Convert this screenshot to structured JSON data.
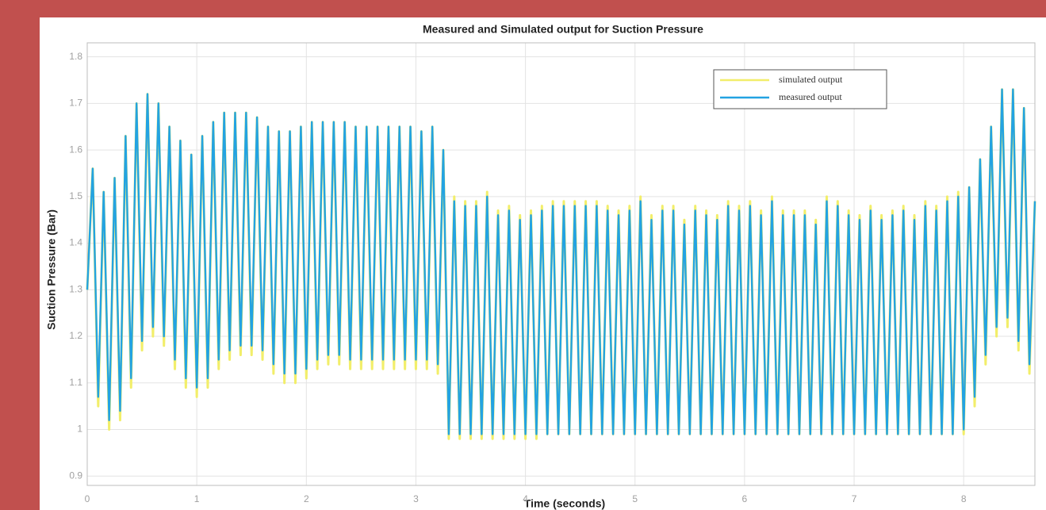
{
  "chart_data": {
    "type": "line",
    "title": "Measured and Simulated output for Suction Pressure",
    "xlabel": "Time (seconds)",
    "ylabel": "Suction Pressure (Bar)",
    "x": [
      0,
      0.05,
      0.1,
      0.15,
      0.2,
      0.25,
      0.3,
      0.35,
      0.4,
      0.45,
      0.5,
      0.55,
      0.6,
      0.65,
      0.7,
      0.75,
      0.8,
      0.85,
      0.9,
      0.95,
      1,
      1.05,
      1.1,
      1.15,
      1.2,
      1.25,
      1.3,
      1.35,
      1.4,
      1.45,
      1.5,
      1.55,
      1.6,
      1.65,
      1.7,
      1.75,
      1.8,
      1.85,
      1.9,
      1.95,
      2,
      2.05,
      2.1,
      2.15,
      2.2,
      2.25,
      2.3,
      2.35,
      2.4,
      2.45,
      2.5,
      2.55,
      2.6,
      2.65,
      2.7,
      2.75,
      2.8,
      2.85,
      2.9,
      2.95,
      3,
      3.05,
      3.1,
      3.15,
      3.2,
      3.25,
      3.3,
      3.35,
      3.4,
      3.45,
      3.5,
      3.55,
      3.6,
      3.65,
      3.7,
      3.75,
      3.8,
      3.85,
      3.9,
      3.95,
      4,
      4.05,
      4.1,
      4.15,
      4.2,
      4.25,
      4.3,
      4.35,
      4.4,
      4.45,
      4.5,
      4.55,
      4.6,
      4.65,
      4.7,
      4.75,
      4.8,
      4.85,
      4.9,
      4.95,
      5,
      5.05,
      5.1,
      5.15,
      5.2,
      5.25,
      5.3,
      5.35,
      5.4,
      5.45,
      5.5,
      5.55,
      5.6,
      5.65,
      5.7,
      5.75,
      5.8,
      5.85,
      5.9,
      5.95,
      6,
      6.05,
      6.1,
      6.15,
      6.2,
      6.25,
      6.3,
      6.35,
      6.4,
      6.45,
      6.5,
      6.55,
      6.6,
      6.65,
      6.7,
      6.75,
      6.8,
      6.85,
      6.9,
      6.95,
      7,
      7.05,
      7.1,
      7.15,
      7.2,
      7.25,
      7.3,
      7.35,
      7.4,
      7.45,
      7.5,
      7.55,
      7.6,
      7.65,
      7.7,
      7.75,
      7.8,
      7.85,
      7.9,
      7.95,
      8,
      8.05,
      8.1,
      8.15,
      8.2,
      8.25,
      8.3,
      8.35,
      8.4,
      8.45,
      8.5,
      8.55,
      8.6,
      8.65
    ],
    "series": [
      {
        "name": "simulated output",
        "color": "#f2ee6a",
        "values": [
          1.3,
          1.56,
          1.05,
          1.51,
          1.0,
          1.54,
          1.02,
          1.63,
          1.09,
          1.7,
          1.17,
          1.72,
          1.2,
          1.7,
          1.18,
          1.65,
          1.13,
          1.62,
          1.09,
          1.59,
          1.07,
          1.63,
          1.09,
          1.66,
          1.13,
          1.68,
          1.15,
          1.68,
          1.16,
          1.68,
          1.16,
          1.67,
          1.15,
          1.65,
          1.12,
          1.64,
          1.1,
          1.64,
          1.1,
          1.65,
          1.11,
          1.66,
          1.13,
          1.66,
          1.14,
          1.66,
          1.14,
          1.66,
          1.13,
          1.65,
          1.13,
          1.65,
          1.13,
          1.65,
          1.13,
          1.65,
          1.13,
          1.65,
          1.13,
          1.65,
          1.13,
          1.64,
          1.13,
          1.65,
          1.12,
          1.6,
          0.98,
          1.5,
          0.98,
          1.49,
          0.98,
          1.49,
          0.98,
          1.51,
          0.98,
          1.47,
          0.98,
          1.48,
          0.98,
          1.46,
          0.98,
          1.47,
          0.98,
          1.48,
          0.99,
          1.49,
          0.99,
          1.49,
          0.99,
          1.49,
          0.99,
          1.49,
          0.99,
          1.49,
          0.99,
          1.48,
          0.99,
          1.47,
          0.99,
          1.48,
          0.99,
          1.5,
          0.99,
          1.46,
          0.99,
          1.48,
          0.99,
          1.48,
          0.99,
          1.45,
          0.99,
          1.48,
          0.99,
          1.47,
          0.99,
          1.46,
          0.99,
          1.49,
          0.99,
          1.48,
          0.99,
          1.49,
          0.99,
          1.47,
          0.99,
          1.5,
          0.99,
          1.47,
          0.99,
          1.47,
          0.99,
          1.47,
          0.99,
          1.45,
          0.99,
          1.5,
          0.99,
          1.49,
          0.99,
          1.47,
          0.99,
          1.46,
          0.99,
          1.48,
          0.99,
          1.46,
          0.99,
          1.47,
          0.99,
          1.48,
          0.99,
          1.46,
          0.99,
          1.49,
          0.99,
          1.48,
          0.99,
          1.5,
          0.99,
          1.51,
          0.99,
          1.52,
          1.05,
          1.58,
          1.14,
          1.65,
          1.2,
          1.73,
          1.22,
          1.73,
          1.17,
          1.69,
          1.12,
          1.49
        ]
      },
      {
        "name": "measured output",
        "color": "#23a3e2",
        "values": [
          1.3,
          1.56,
          1.07,
          1.51,
          1.02,
          1.54,
          1.04,
          1.63,
          1.11,
          1.7,
          1.19,
          1.72,
          1.22,
          1.7,
          1.2,
          1.65,
          1.15,
          1.62,
          1.11,
          1.59,
          1.09,
          1.63,
          1.11,
          1.66,
          1.15,
          1.68,
          1.17,
          1.68,
          1.18,
          1.68,
          1.18,
          1.67,
          1.17,
          1.65,
          1.14,
          1.64,
          1.12,
          1.64,
          1.12,
          1.65,
          1.13,
          1.66,
          1.15,
          1.66,
          1.16,
          1.66,
          1.16,
          1.66,
          1.15,
          1.65,
          1.15,
          1.65,
          1.15,
          1.65,
          1.15,
          1.65,
          1.15,
          1.65,
          1.15,
          1.65,
          1.15,
          1.64,
          1.15,
          1.65,
          1.14,
          1.6,
          0.99,
          1.49,
          0.99,
          1.48,
          0.99,
          1.48,
          0.99,
          1.5,
          0.99,
          1.46,
          0.99,
          1.47,
          0.99,
          1.45,
          0.99,
          1.46,
          0.99,
          1.47,
          0.99,
          1.48,
          0.99,
          1.48,
          0.99,
          1.48,
          0.99,
          1.48,
          0.99,
          1.48,
          0.99,
          1.47,
          0.99,
          1.46,
          0.99,
          1.47,
          0.99,
          1.49,
          0.99,
          1.45,
          0.99,
          1.47,
          0.99,
          1.47,
          0.99,
          1.44,
          0.99,
          1.47,
          0.99,
          1.46,
          0.99,
          1.45,
          0.99,
          1.48,
          0.99,
          1.47,
          0.99,
          1.48,
          0.99,
          1.46,
          0.99,
          1.49,
          0.99,
          1.46,
          0.99,
          1.46,
          0.99,
          1.46,
          0.99,
          1.44,
          0.99,
          1.49,
          0.99,
          1.48,
          0.99,
          1.46,
          0.99,
          1.45,
          0.99,
          1.47,
          0.99,
          1.45,
          0.99,
          1.46,
          0.99,
          1.47,
          0.99,
          1.45,
          0.99,
          1.48,
          0.99,
          1.47,
          0.99,
          1.49,
          0.99,
          1.5,
          1.0,
          1.52,
          1.07,
          1.58,
          1.16,
          1.65,
          1.22,
          1.73,
          1.24,
          1.73,
          1.19,
          1.69,
          1.14,
          1.49
        ]
      }
    ],
    "xlim": [
      0,
      8.65
    ],
    "xticks": [
      0,
      1,
      2,
      3,
      4,
      5,
      6,
      7,
      8
    ],
    "ylim": [
      0.88,
      1.83
    ],
    "yticks": [
      0.9,
      1,
      1.1,
      1.2,
      1.3,
      1.4,
      1.5,
      1.6,
      1.7,
      1.8
    ],
    "grid": true,
    "legend": "upper right"
  }
}
